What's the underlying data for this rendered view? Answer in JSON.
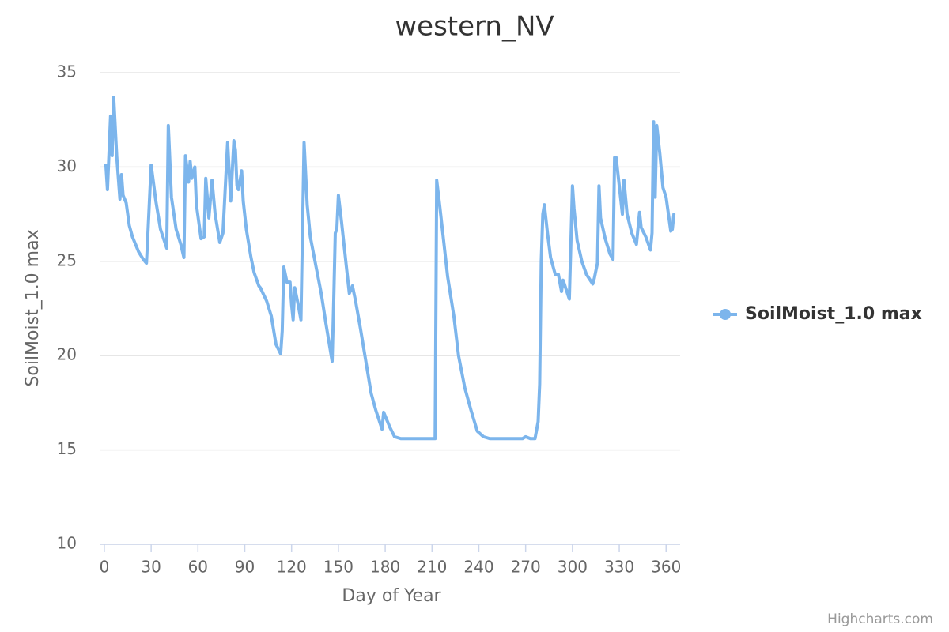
{
  "chart_data": {
    "type": "line",
    "title": "western_NV",
    "x_label": "Day of Year",
    "y_label": "SoilMoist_1.0 max",
    "credits": "Highcharts.com",
    "xlim": [
      -2.5,
      369
    ],
    "ylim": [
      10,
      35
    ],
    "xticks": [
      0,
      30,
      60,
      90,
      120,
      150,
      180,
      210,
      240,
      270,
      300,
      330,
      360
    ],
    "yticks": [
      10,
      15,
      20,
      25,
      30,
      35
    ],
    "grid": true,
    "legend": "right",
    "x": [
      1,
      2,
      4,
      5,
      6,
      8,
      10,
      11,
      12,
      14,
      16,
      18,
      22,
      25,
      27,
      30,
      33,
      36,
      40,
      41,
      43,
      46,
      49,
      51,
      52,
      54,
      55,
      56,
      58,
      59,
      62,
      64,
      65,
      67,
      69,
      71,
      74,
      76,
      79,
      81,
      83,
      84,
      85,
      86,
      88,
      89,
      91,
      94,
      96,
      99,
      100,
      104,
      107,
      110,
      113,
      114,
      115,
      117,
      119,
      120,
      121,
      122,
      124,
      126,
      128,
      130,
      132,
      135,
      139,
      142,
      144,
      146,
      147,
      148,
      149,
      150,
      152,
      155,
      157,
      159,
      161,
      164,
      168,
      171,
      174,
      178,
      179,
      183,
      186,
      190,
      212,
      213,
      215,
      220,
      224,
      227,
      231,
      235,
      239,
      243,
      247,
      268,
      270,
      273,
      276,
      278,
      279,
      280,
      281,
      282,
      284,
      286,
      289,
      291,
      293,
      294,
      296,
      298,
      300,
      301,
      303,
      306,
      309,
      313,
      314,
      316,
      317,
      318,
      321,
      324,
      326,
      327,
      328,
      330,
      332,
      333,
      335,
      338,
      341,
      343,
      344,
      347,
      350,
      351,
      352,
      353,
      354,
      356,
      358,
      360,
      363,
      364,
      365
    ],
    "series": [
      {
        "name": "SoilMoist_1.0 max",
        "color": "#7cb5ec",
        "values": [
          30.1,
          28.8,
          32.7,
          30.6,
          33.7,
          30.5,
          28.3,
          29.6,
          28.5,
          28.1,
          26.9,
          26.3,
          25.5,
          25.1,
          24.9,
          30.1,
          28.2,
          26.7,
          25.7,
          32.2,
          28.4,
          26.7,
          25.9,
          25.2,
          30.6,
          29.2,
          30.3,
          29.4,
          30,
          28,
          26.2,
          26.3,
          29.4,
          27.3,
          29.3,
          27.5,
          26,
          26.5,
          31.3,
          28.2,
          31.4,
          30.9,
          29,
          28.8,
          29.8,
          28.2,
          26.7,
          25.2,
          24.4,
          23.7,
          23.6,
          22.9,
          22.1,
          20.6,
          20.1,
          21.3,
          24.7,
          23.9,
          23.9,
          22.7,
          21.9,
          23.6,
          22.8,
          21.9,
          31.3,
          28,
          26.3,
          25,
          23.3,
          21.7,
          20.7,
          19.7,
          22.9,
          26.5,
          26.7,
          28.5,
          27.1,
          24.8,
          23.3,
          23.7,
          22.9,
          21.5,
          19.5,
          18,
          17.1,
          16.1,
          17,
          16.2,
          15.7,
          15.6,
          15.6,
          29.3,
          27.9,
          24.2,
          22.1,
          20,
          18.3,
          17.1,
          16,
          15.7,
          15.6,
          15.6,
          15.7,
          15.6,
          15.6,
          16.5,
          18.5,
          25,
          27.5,
          28,
          26.5,
          25.2,
          24.3,
          24.3,
          23.4,
          24,
          23.5,
          23,
          29,
          27.8,
          26.1,
          25,
          24.3,
          23.8,
          24.1,
          24.9,
          29,
          27.3,
          26.2,
          25.4,
          25.1,
          30.5,
          30.5,
          29,
          27.5,
          29.3,
          27.5,
          26.5,
          25.9,
          27.6,
          26.8,
          26.3,
          25.6,
          26.5,
          32.4,
          28.4,
          32.2,
          30.7,
          28.9,
          28.4,
          26.6,
          26.7,
          27.5
        ]
      }
    ]
  }
}
